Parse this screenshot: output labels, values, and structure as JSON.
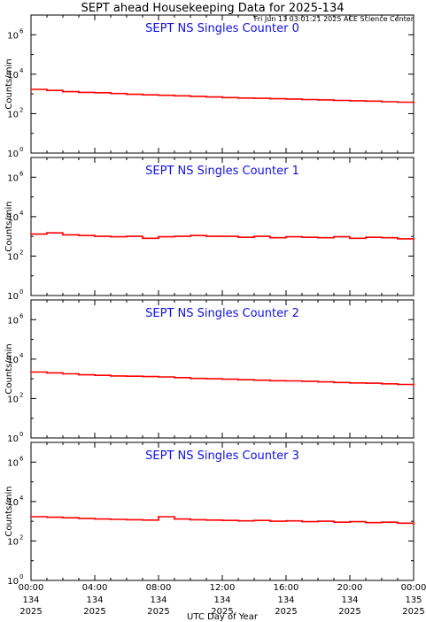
{
  "header": {
    "title": "SEPT ahead Housekeeping Data for 2025-134",
    "timestamp": "Fri Jun 13 03:01:21 2025 ACE Science Center"
  },
  "colors": {
    "series": "#ff0000",
    "panel_title": "#1010e6",
    "axes": "#000000"
  },
  "chart_data": [
    {
      "type": "line",
      "title": "SEPT NS Singles Counter 0",
      "ylabel": "Counts/min",
      "yscale": "log",
      "ylim": [
        1,
        10000000
      ],
      "yticks": [
        {
          "v": 1,
          "e": "0"
        },
        {
          "v": 100,
          "e": "2"
        },
        {
          "v": 10000,
          "e": "4"
        },
        {
          "v": 1000000,
          "e": "6"
        }
      ],
      "x_hours": [
        0,
        1,
        2,
        3,
        4,
        5,
        6,
        7,
        8,
        9,
        10,
        11,
        12,
        13,
        14,
        15,
        16,
        17,
        18,
        19,
        20,
        21,
        22,
        23,
        24
      ],
      "values": [
        1700,
        1500,
        1300,
        1200,
        1150,
        1050,
        950,
        900,
        850,
        800,
        750,
        700,
        650,
        620,
        600,
        570,
        550,
        520,
        500,
        470,
        450,
        430,
        400,
        380,
        330
      ]
    },
    {
      "type": "line",
      "title": "SEPT NS Singles Counter 1",
      "ylabel": "Counts/min",
      "yscale": "log",
      "ylim": [
        1,
        10000000
      ],
      "yticks": [
        {
          "v": 1,
          "e": "0"
        },
        {
          "v": 100,
          "e": "2"
        },
        {
          "v": 10000,
          "e": "4"
        },
        {
          "v": 1000000,
          "e": "6"
        }
      ],
      "x_hours": [
        0,
        1,
        2,
        3,
        4,
        5,
        6,
        7,
        8,
        9,
        10,
        11,
        12,
        13,
        14,
        15,
        16,
        17,
        18,
        19,
        20,
        21,
        22,
        23,
        24
      ],
      "values": [
        1300,
        1500,
        1200,
        1100,
        1000,
        950,
        1000,
        800,
        950,
        1000,
        1100,
        1000,
        1000,
        900,
        1000,
        850,
        950,
        900,
        850,
        950,
        800,
        900,
        850,
        750,
        650
      ]
    },
    {
      "type": "line",
      "title": "SEPT NS Singles Counter 2",
      "ylabel": "Counts/min",
      "yscale": "log",
      "ylim": [
        1,
        10000000
      ],
      "yticks": [
        {
          "v": 1,
          "e": "0"
        },
        {
          "v": 100,
          "e": "2"
        },
        {
          "v": 10000,
          "e": "4"
        },
        {
          "v": 1000000,
          "e": "6"
        }
      ],
      "x_hours": [
        0,
        1,
        2,
        3,
        4,
        5,
        6,
        7,
        8,
        9,
        10,
        11,
        12,
        13,
        14,
        15,
        16,
        17,
        18,
        19,
        20,
        21,
        22,
        23,
        24
      ],
      "values": [
        2200,
        2000,
        1800,
        1600,
        1500,
        1400,
        1350,
        1300,
        1250,
        1150,
        1050,
        1000,
        950,
        900,
        850,
        800,
        780,
        750,
        700,
        650,
        620,
        600,
        560,
        520,
        450
      ]
    },
    {
      "type": "line",
      "title": "SEPT NS Singles Counter 3",
      "ylabel": "Counts/min",
      "yscale": "log",
      "ylim": [
        1,
        10000000
      ],
      "yticks": [
        {
          "v": 1,
          "e": "0"
        },
        {
          "v": 100,
          "e": "2"
        },
        {
          "v": 10000,
          "e": "4"
        },
        {
          "v": 1000000,
          "e": "6"
        }
      ],
      "x_hours": [
        0,
        1,
        2,
        3,
        4,
        5,
        6,
        7,
        8,
        9,
        10,
        11,
        12,
        13,
        14,
        15,
        16,
        17,
        18,
        19,
        20,
        21,
        22,
        23,
        24
      ],
      "values": [
        1700,
        1600,
        1500,
        1400,
        1300,
        1250,
        1200,
        1150,
        1700,
        1300,
        1200,
        1150,
        1100,
        1050,
        1100,
        1000,
        1050,
        950,
        1000,
        900,
        950,
        850,
        900,
        800,
        700
      ]
    }
  ],
  "x_axis": {
    "label": "UTC Day of Year",
    "ticks": [
      {
        "hour": 0,
        "time": "00:00",
        "day": "134",
        "year": "2025"
      },
      {
        "hour": 4,
        "time": "04:00",
        "day": "134",
        "year": "2025"
      },
      {
        "hour": 8,
        "time": "08:00",
        "day": "134",
        "year": "2025"
      },
      {
        "hour": 12,
        "time": "12:00",
        "day": "134",
        "year": "2025"
      },
      {
        "hour": 16,
        "time": "16:00",
        "day": "134",
        "year": "2025"
      },
      {
        "hour": 20,
        "time": "20:00",
        "day": "134",
        "year": "2025"
      },
      {
        "hour": 24,
        "time": "00:00",
        "day": "135",
        "year": "2025"
      }
    ]
  }
}
